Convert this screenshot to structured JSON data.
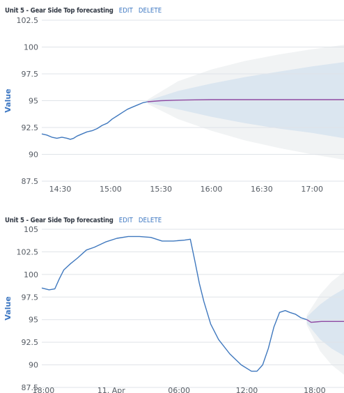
{
  "panels": [
    {
      "title": "Unit 5 - Gear Side Top forecasting",
      "edit_label": "EDIT",
      "delete_label": "DELETE"
    },
    {
      "title": "Unit 5 - Gear Side Top forecasting",
      "edit_label": "EDIT",
      "delete_label": "DELETE"
    }
  ],
  "chart_data": [
    {
      "type": "line",
      "title": "",
      "ylabel": "Value",
      "xlabel": "",
      "ylim": [
        87.5,
        102.5
      ],
      "yticks": [
        "102.5",
        "100",
        "97.5",
        "95",
        "92.5",
        "90",
        "87.5"
      ],
      "xlim": [
        "14:19",
        "17:19"
      ],
      "xticks": [
        "14:30",
        "15:00",
        "15:30",
        "16:00",
        "16:30",
        "17:00"
      ],
      "grid": true,
      "colors": {
        "actual": "#3f78be",
        "forecast": "#8f4aa3",
        "band_inner": "#dbe6f0",
        "band_outer": "#f1f3f4"
      },
      "series": [
        {
          "role": "actual",
          "x": [
            "14:19",
            "14:22",
            "14:25",
            "14:28",
            "14:31",
            "14:34",
            "14:36",
            "14:38",
            "14:40",
            "14:43",
            "14:46",
            "14:49",
            "14:52",
            "14:55",
            "14:58",
            "15:01",
            "15:04",
            "15:07",
            "15:10",
            "15:13",
            "15:16",
            "15:19",
            "15:22"
          ],
          "values": [
            91.9,
            91.8,
            91.6,
            91.5,
            91.6,
            91.5,
            91.4,
            91.5,
            91.7,
            91.9,
            92.1,
            92.2,
            92.4,
            92.7,
            92.9,
            93.3,
            93.6,
            93.9,
            94.2,
            94.4,
            94.6,
            94.8,
            94.9
          ]
        },
        {
          "role": "forecast",
          "x": [
            "15:22",
            "15:30",
            "15:40",
            "15:50",
            "16:00",
            "16:20",
            "16:40",
            "17:00",
            "17:19"
          ],
          "values": [
            94.9,
            95.0,
            95.05,
            95.08,
            95.1,
            95.1,
            95.1,
            95.1,
            95.1
          ]
        },
        {
          "role": "band_inner",
          "x": [
            "15:22",
            "15:40",
            "16:00",
            "16:20",
            "16:40",
            "17:00",
            "17:19"
          ],
          "upper": [
            95.0,
            95.9,
            96.6,
            97.2,
            97.7,
            98.2,
            98.6
          ],
          "lower": [
            94.8,
            94.2,
            93.5,
            92.9,
            92.4,
            92.0,
            91.5
          ]
        },
        {
          "role": "band_outer",
          "x": [
            "15:22",
            "15:40",
            "16:00",
            "16:20",
            "16:40",
            "17:00",
            "17:19"
          ],
          "upper": [
            95.1,
            96.8,
            97.9,
            98.7,
            99.3,
            99.8,
            100.2
          ],
          "lower": [
            94.7,
            93.3,
            92.2,
            91.3,
            90.6,
            90.0,
            89.5
          ]
        }
      ]
    },
    {
      "type": "line",
      "title": "",
      "ylabel": "Value",
      "xlabel": "",
      "ylim": [
        87.5,
        105
      ],
      "yticks": [
        "105",
        "102.5",
        "100",
        "97.5",
        "95",
        "92.5",
        "90",
        "87.5"
      ],
      "xlim": [
        -0.15,
        26.6
      ],
      "xticks": [
        "18:00",
        "11. Apr",
        "06:00",
        "12:00",
        "18:00"
      ],
      "xtick_values": [
        0,
        6,
        12,
        18,
        24
      ],
      "grid": true,
      "colors": {
        "actual": "#3f78be",
        "forecast": "#8f4aa3",
        "band_inner": "#dbe6f0",
        "band_outer": "#f1f3f4"
      },
      "series": [
        {
          "role": "actual",
          "x": [
            -0.15,
            0.5,
            1,
            1.4,
            1.8,
            2.4,
            3.0,
            3.8,
            4.5,
            5.5,
            6.5,
            7.5,
            8.5,
            9.5,
            10.5,
            11.5,
            12.5,
            13.0,
            13.4,
            13.8,
            14.2,
            14.8,
            15.5,
            16.5,
            17.5,
            18.4,
            18.9,
            19.4,
            19.9,
            20.4,
            20.9,
            21.4,
            21.8,
            22.3,
            22.8,
            23.3
          ],
          "values": [
            98.5,
            98.3,
            98.4,
            99.5,
            100.5,
            101.2,
            101.8,
            102.7,
            103.0,
            103.6,
            104.0,
            104.2,
            104.2,
            104.1,
            103.7,
            103.7,
            103.8,
            103.9,
            101.5,
            99.0,
            97.0,
            94.5,
            92.8,
            91.2,
            90.0,
            89.3,
            89.3,
            90.0,
            91.8,
            94.2,
            95.8,
            96.0,
            95.8,
            95.6,
            95.2,
            95.0
          ]
        },
        {
          "role": "forecast",
          "x": [
            23.3,
            23.7,
            24.1,
            24.6,
            25.2,
            25.8,
            26.6
          ],
          "values": [
            95.0,
            94.7,
            94.75,
            94.8,
            94.8,
            94.8,
            94.8
          ]
        },
        {
          "role": "band_inner",
          "x": [
            23.3,
            24.5,
            25.5,
            26.6
          ],
          "upper": [
            95.3,
            96.7,
            97.6,
            98.4
          ],
          "lower": [
            94.6,
            92.8,
            91.8,
            91.0
          ]
        },
        {
          "role": "band_outer",
          "x": [
            23.3,
            24.5,
            25.5,
            26.6
          ],
          "upper": [
            95.5,
            97.8,
            99.2,
            100.3
          ],
          "lower": [
            94.4,
            91.5,
            90.0,
            88.9
          ]
        }
      ]
    }
  ]
}
